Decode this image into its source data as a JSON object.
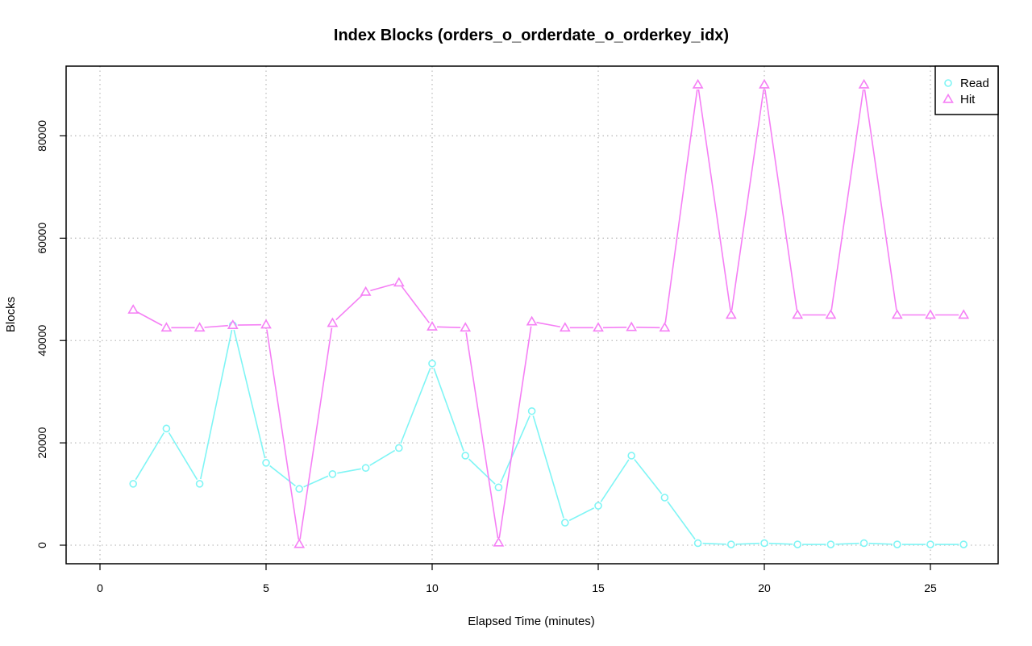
{
  "chart_data": {
    "type": "line",
    "title": "Index Blocks (orders_o_orderdate_o_orderkey_idx)",
    "xlabel": "Elapsed Time (minutes)",
    "ylabel": "Blocks",
    "xlim": [
      0,
      27
    ],
    "ylim": [
      0,
      90000
    ],
    "x_ticks": [
      0,
      5,
      10,
      15,
      20,
      25
    ],
    "y_ticks": [
      0,
      20000,
      40000,
      60000,
      80000
    ],
    "grid": true,
    "legend_position": "top-right",
    "x": [
      1,
      2,
      3,
      4,
      5,
      6,
      7,
      8,
      9,
      10,
      11,
      12,
      13,
      14,
      15,
      16,
      17,
      18,
      19,
      20,
      21,
      22,
      23,
      24,
      25,
      26
    ],
    "series": [
      {
        "name": "Read",
        "color": "#7ff5f5",
        "marker": "circle",
        "values": [
          12000,
          22800,
          12000,
          43000,
          16100,
          11000,
          13900,
          15100,
          19000,
          35500,
          17500,
          11300,
          26200,
          4400,
          7700,
          17500,
          9300,
          400,
          150,
          400,
          150,
          150,
          400,
          150,
          150,
          150
        ]
      },
      {
        "name": "Hit",
        "color": "#f57ff5",
        "marker": "triangle",
        "values": [
          46000,
          42500,
          42500,
          43000,
          43100,
          200,
          43400,
          49500,
          51300,
          42700,
          42500,
          500,
          43700,
          42500,
          42500,
          42600,
          42500,
          90000,
          45000,
          90000,
          45000,
          45000,
          90000,
          45000,
          45000,
          45000
        ]
      }
    ]
  }
}
